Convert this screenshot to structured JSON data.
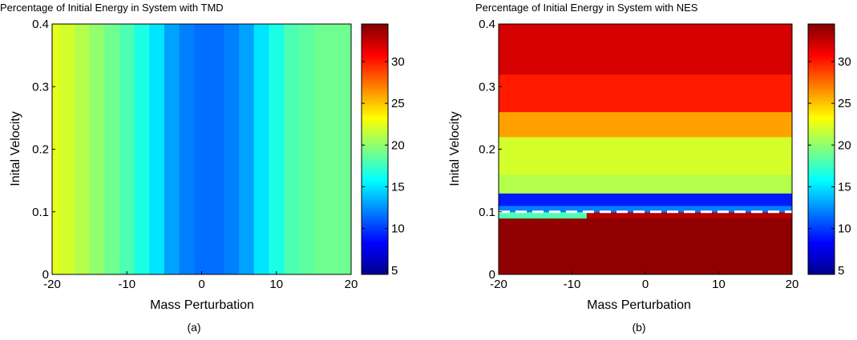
{
  "chart_data": [
    {
      "type": "heatmap",
      "title": "Percentage of Initial Energy in System with TMD",
      "xlabel": "Mass Perturbation",
      "ylabel": "Inital Velocity",
      "caption": "(a)",
      "xlim": [
        -20,
        20
      ],
      "ylim": [
        0,
        0.4
      ],
      "xticks": [
        -20,
        -10,
        0,
        10,
        20
      ],
      "yticks": [
        0,
        0.1,
        0.2,
        0.3,
        0.4
      ],
      "colorbar": {
        "min": 4.5,
        "max": 34.5,
        "ticks": [
          5,
          10,
          15,
          20,
          25,
          30
        ],
        "colormap": "jet"
      },
      "x_columns": [
        -20,
        -18,
        -16,
        -14,
        -12,
        -10,
        -8,
        -6,
        -4,
        -2,
        0,
        2,
        4,
        6,
        8,
        10,
        12,
        14,
        16,
        18,
        20
      ],
      "values_by_x": [
        22.5,
        22,
        21,
        20,
        19,
        18,
        16.5,
        15,
        13,
        12,
        11.5,
        11.5,
        12,
        13,
        15,
        16.5,
        18,
        18.5,
        19,
        19,
        19
      ]
    },
    {
      "type": "heatmap",
      "title": "Percentage of Initial Energy in System with NES",
      "xlabel": "Mass Perturbation",
      "ylabel": "Inital Velocity",
      "caption": "(b)",
      "xlim": [
        -20,
        20
      ],
      "ylim": [
        0,
        0.4
      ],
      "xticks": [
        -20,
        -10,
        0,
        10,
        20
      ],
      "yticks": [
        0,
        0.1,
        0.2,
        0.3,
        0.4
      ],
      "colorbar": {
        "min": 4.5,
        "max": 34.5,
        "ticks": [
          5,
          10,
          15,
          20,
          25,
          30
        ],
        "colormap": "jet"
      },
      "threshold_line": {
        "y": 0.1,
        "style": "white dashed"
      },
      "rows": [
        {
          "y_range": [
            0,
            0.08
          ],
          "value": 34
        },
        {
          "y_range": [
            0.08,
            0.09
          ],
          "value": 34
        },
        {
          "y_range": [
            0.09,
            0.1
          ],
          "value": 33,
          "note_low_x": 18
        },
        {
          "y_range": [
            0.1,
            0.11
          ],
          "value": 12
        },
        {
          "y_range": [
            0.11,
            0.13
          ],
          "value": 9
        },
        {
          "y_range": [
            0.13,
            0.16
          ],
          "value": 21
        },
        {
          "y_range": [
            0.16,
            0.22
          ],
          "value": 22
        },
        {
          "y_range": [
            0.22,
            0.26
          ],
          "value": 26
        },
        {
          "y_range": [
            0.26,
            0.32
          ],
          "value": 30
        },
        {
          "y_range": [
            0.32,
            0.4
          ],
          "value": 32
        }
      ]
    }
  ]
}
